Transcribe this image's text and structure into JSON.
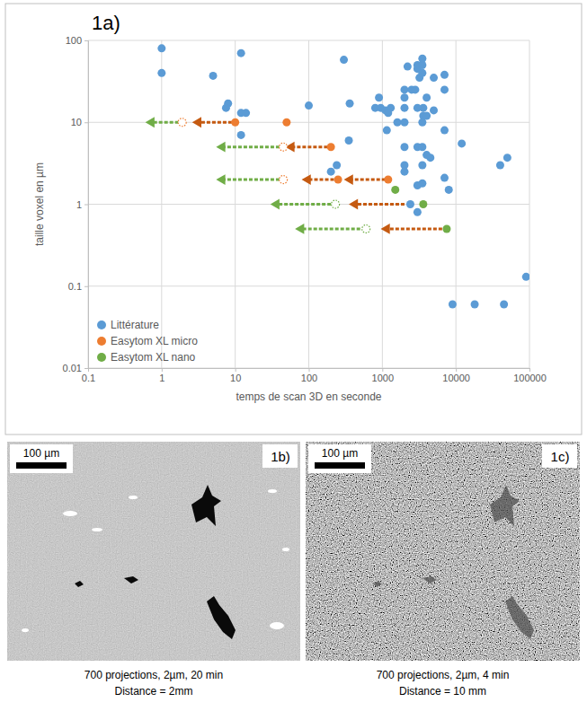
{
  "chart_data": {
    "type": "scatter",
    "title": "1a)",
    "x_label": "temps de scan 3D en seconde",
    "y_label": "taille voxel en µm",
    "log": true,
    "grid": true,
    "legend": "lower left",
    "xlim": [
      0.1,
      100000
    ],
    "ylim": [
      0.01,
      100
    ],
    "xticks": [
      0.1,
      1,
      10,
      100,
      1000,
      10000,
      100000
    ],
    "yticks": [
      0.01,
      0.1,
      1,
      10,
      100
    ],
    "series": [
      {
        "name": "Littérature",
        "color": "#5b9bd5",
        "x": [
          1,
          1,
          12,
          5,
          8,
          7.5,
          12,
          14,
          12,
          100,
          300,
          360,
          350,
          240,
          200,
          800,
          900,
          950,
          1100,
          1200,
          1300,
          1150,
          1600,
          2000,
          2000,
          2000,
          2000,
          2200,
          2500,
          2800,
          3000,
          3000,
          3200,
          3500,
          3500,
          3500,
          3600,
          3600,
          3000,
          3500,
          4000,
          2000,
          2000,
          2000,
          3000,
          3500,
          3000,
          3500,
          3000,
          3500,
          4000,
          5000,
          5000,
          7000,
          7000,
          7000,
          7000,
          8000,
          12000,
          40000,
          50000,
          9000,
          18000,
          45000,
          90000,
          4000,
          4500,
          2400
        ],
        "values": [
          80,
          40,
          70,
          37,
          17,
          15,
          13,
          13,
          7,
          16,
          58,
          17,
          6,
          3,
          2.5,
          15,
          20,
          15,
          14,
          13,
          15,
          8,
          10,
          10,
          15,
          20,
          25,
          48,
          25,
          25,
          45,
          50,
          35,
          40,
          50,
          60,
          15,
          12,
          15,
          10,
          12,
          5,
          3,
          2.5,
          5,
          5,
          1.7,
          1.8,
          0.8,
          3,
          4,
          14,
          35,
          38,
          25,
          8,
          2.1,
          1.5,
          5.5,
          3,
          3.7,
          0.06,
          0.06,
          0.06,
          0.13,
          20,
          3.7,
          1
        ]
      },
      {
        "name": "Easytom XL micro",
        "color": "#ed7d31",
        "x": [
          10,
          50,
          200,
          1200,
          250
        ],
        "values": [
          10,
          10,
          5,
          2,
          2
        ]
      },
      {
        "name": "Easytom XL nano",
        "color": "#70ad47",
        "x": [
          3600,
          7500,
          1500
        ],
        "values": [
          1,
          0.5,
          1.5
        ]
      }
    ],
    "arrows": [
      {
        "x": [
          9,
          2.6
        ],
        "y": 10,
        "color": "#c55a11"
      },
      {
        "x": [
          1.7,
          0.6
        ],
        "y": 10,
        "color": "#70ad47"
      },
      {
        "x": [
          180,
          48
        ],
        "y": 5,
        "color": "#c55a11"
      },
      {
        "x": [
          40,
          5.5
        ],
        "y": 5,
        "color": "#70ad47"
      },
      {
        "x": [
          1100,
          300
        ],
        "y": 2,
        "color": "#c55a11"
      },
      {
        "x": [
          220,
          80
        ],
        "y": 2,
        "color": "#c55a11"
      },
      {
        "x": [
          40,
          5.5
        ],
        "y": 2,
        "color": "#70ad47"
      },
      {
        "x": [
          2000,
          350
        ],
        "y": 1,
        "color": "#c55a11"
      },
      {
        "x": [
          200,
          30
        ],
        "y": 1,
        "color": "#70ad47"
      },
      {
        "x": [
          6500,
          950
        ],
        "y": 0.5,
        "color": "#c55a11"
      },
      {
        "x": [
          500,
          65
        ],
        "y": 0.5,
        "color": "#70ad47"
      }
    ],
    "projections": [
      {
        "x": 1.9,
        "y": 10,
        "color": "#ed7d31"
      },
      {
        "x": 45,
        "y": 5,
        "color": "#ed7d31"
      },
      {
        "x": 45,
        "y": 2,
        "color": "#ed7d31"
      },
      {
        "x": 230,
        "y": 1,
        "color": "#70ad47"
      },
      {
        "x": 600,
        "y": 0.5,
        "color": "#70ad47"
      }
    ]
  },
  "images": [
    {
      "label": "1b)",
      "scale_bar": "100 µm",
      "caption": [
        "700 projections, 2µm, 20 min",
        "Distance = 2mm"
      ]
    },
    {
      "label": "1c)",
      "scale_bar": "100 µm",
      "caption": [
        "700 projections, 2µm, 4 min",
        "Distance = 10 mm"
      ]
    }
  ]
}
